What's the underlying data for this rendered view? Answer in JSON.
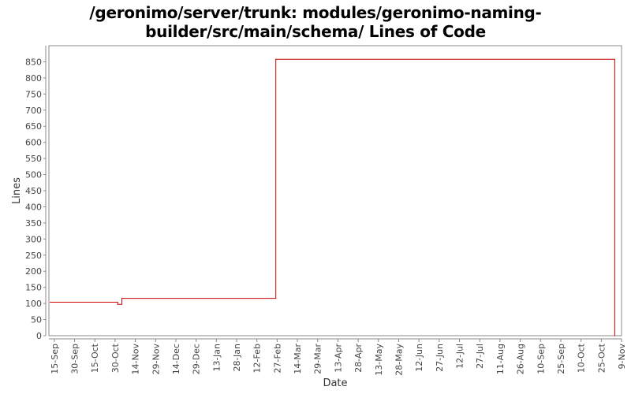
{
  "chart_data": {
    "type": "line",
    "title": "/geronimo/server/trunk: modules/geronimo-naming-builder/src/main/schema/ Lines of Code",
    "title_lines": [
      "/geronimo/server/trunk: modules/geronimo-naming-",
      "builder/src/main/schema/ Lines of Code"
    ],
    "xlabel": "Date",
    "ylabel": "Lines",
    "ylim": [
      0,
      900
    ],
    "yticks": [
      0,
      50,
      100,
      150,
      200,
      250,
      300,
      350,
      400,
      450,
      500,
      550,
      600,
      650,
      700,
      750,
      800,
      850
    ],
    "xlim": [
      "2005-09-11",
      "2006-11-09"
    ],
    "xticks": [
      {
        "date": "2005-09-15",
        "label": "15-Sep"
      },
      {
        "date": "2005-09-30",
        "label": "30-Sep"
      },
      {
        "date": "2005-10-15",
        "label": "15-Oct"
      },
      {
        "date": "2005-10-30",
        "label": "30-Oct"
      },
      {
        "date": "2005-11-14",
        "label": "14-Nov"
      },
      {
        "date": "2005-11-29",
        "label": "29-Nov"
      },
      {
        "date": "2005-12-14",
        "label": "14-Dec"
      },
      {
        "date": "2005-12-29",
        "label": "29-Dec"
      },
      {
        "date": "2006-01-13",
        "label": "13-Jan"
      },
      {
        "date": "2006-01-28",
        "label": "28-Jan"
      },
      {
        "date": "2006-02-12",
        "label": "12-Feb"
      },
      {
        "date": "2006-02-27",
        "label": "27-Feb"
      },
      {
        "date": "2006-03-14",
        "label": "14-Mar"
      },
      {
        "date": "2006-03-29",
        "label": "29-Mar"
      },
      {
        "date": "2006-04-13",
        "label": "13-Apr"
      },
      {
        "date": "2006-04-28",
        "label": "28-Apr"
      },
      {
        "date": "2006-05-13",
        "label": "13-May"
      },
      {
        "date": "2006-05-28",
        "label": "28-May"
      },
      {
        "date": "2006-06-12",
        "label": "12-Jun"
      },
      {
        "date": "2006-06-27",
        "label": "27-Jun"
      },
      {
        "date": "2006-07-12",
        "label": "12-Jul"
      },
      {
        "date": "2006-07-27",
        "label": "27-Jul"
      },
      {
        "date": "2006-08-11",
        "label": "11-Aug"
      },
      {
        "date": "2006-08-26",
        "label": "26-Aug"
      },
      {
        "date": "2006-09-10",
        "label": "10-Sep"
      },
      {
        "date": "2006-09-25",
        "label": "25-Sep"
      },
      {
        "date": "2006-10-10",
        "label": "10-Oct"
      },
      {
        "date": "2006-10-25",
        "label": "25-Oct"
      },
      {
        "date": "2006-11-09",
        "label": "9-Nov"
      }
    ],
    "grid": false,
    "legend": "none",
    "series": [
      {
        "color": "#cc0000",
        "step": true,
        "points": [
          {
            "x": "2005-09-12",
            "y": 104
          },
          {
            "x": "2005-11-01",
            "y": 97
          },
          {
            "x": "2005-11-04",
            "y": 116
          },
          {
            "x": "2006-02-26",
            "y": 858
          },
          {
            "x": "2006-11-04",
            "y": 0
          }
        ]
      }
    ]
  }
}
